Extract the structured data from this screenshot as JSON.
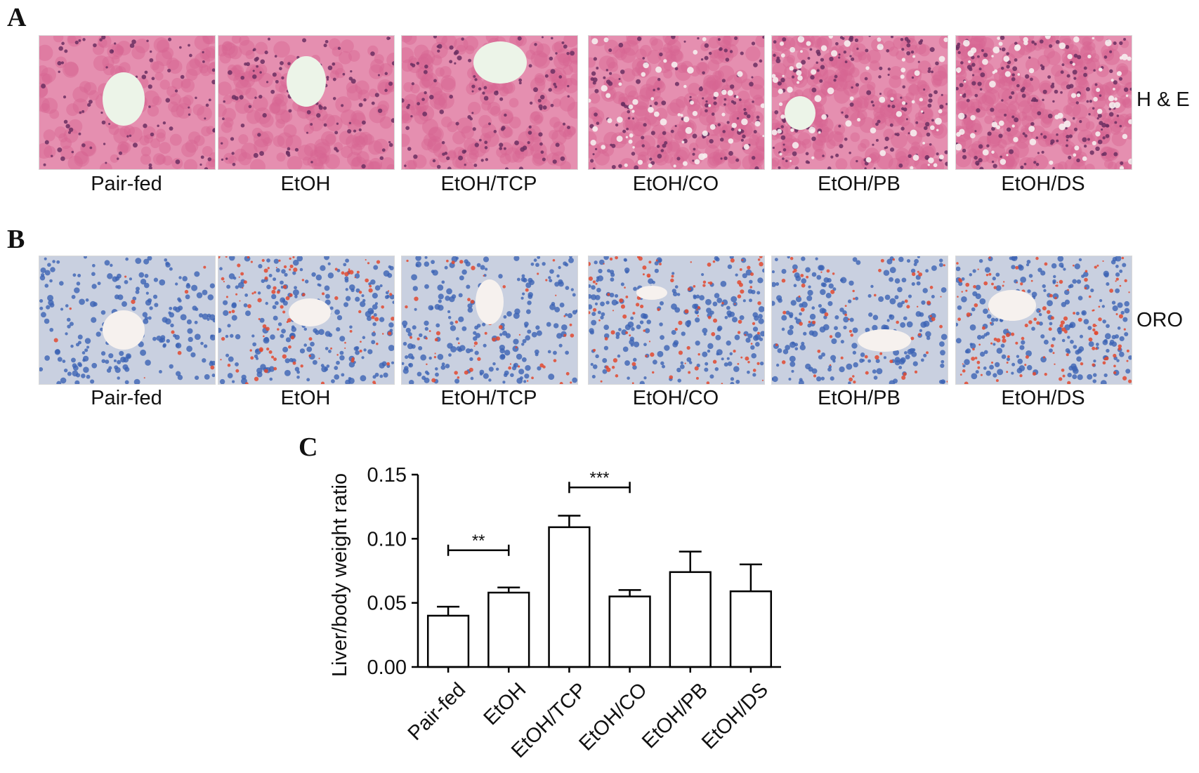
{
  "panels": {
    "a": {
      "letter": "A",
      "stain_label": "H & E",
      "captions": [
        "Pair-fed",
        "EtOH",
        "EtOH/TCP",
        "EtOH/CO",
        "EtOH/PB",
        "EtOH/DS"
      ],
      "colors": {
        "background": "#e58fb0",
        "cell": "#d76592",
        "nucleus": "#6b2f61",
        "lumen": "#ecf4e8"
      }
    },
    "b": {
      "letter": "B",
      "stain_label": "ORO",
      "captions": [
        "Pair-fed",
        "EtOH",
        "EtOH/TCP",
        "EtOH/CO",
        "EtOH/PB",
        "EtOH/DS"
      ],
      "colors": {
        "background": "#c9d0e0",
        "nucleus": "#3c63b4",
        "lipid": "#e2492f",
        "lumen": "#f6f1ee"
      }
    },
    "c": {
      "letter": "C"
    }
  },
  "chart_data": {
    "type": "bar",
    "categories": [
      "Pair-fed",
      "EtOH",
      "EtOH/TCP",
      "EtOH/CO",
      "EtOH/PB",
      "EtOH/DS"
    ],
    "values": [
      0.04,
      0.058,
      0.109,
      0.055,
      0.074,
      0.059
    ],
    "errors": [
      0.007,
      0.004,
      0.009,
      0.005,
      0.016,
      0.021
    ],
    "ylabel": "Liver/body weight ratio",
    "xlabel": "",
    "ylim": [
      0,
      0.15
    ],
    "yticks": [
      0.0,
      0.05,
      0.1,
      0.15
    ],
    "ytick_labels": [
      "0.00",
      "0.05",
      "0.10",
      "0.15"
    ],
    "bar_fill": "#ffffff",
    "bar_stroke": "#000000",
    "grid": false,
    "significance": [
      {
        "from": 0,
        "to": 1,
        "label": "**",
        "y": 0.091
      },
      {
        "from": 2,
        "to": 3,
        "label": "***",
        "y": 0.14
      }
    ]
  }
}
